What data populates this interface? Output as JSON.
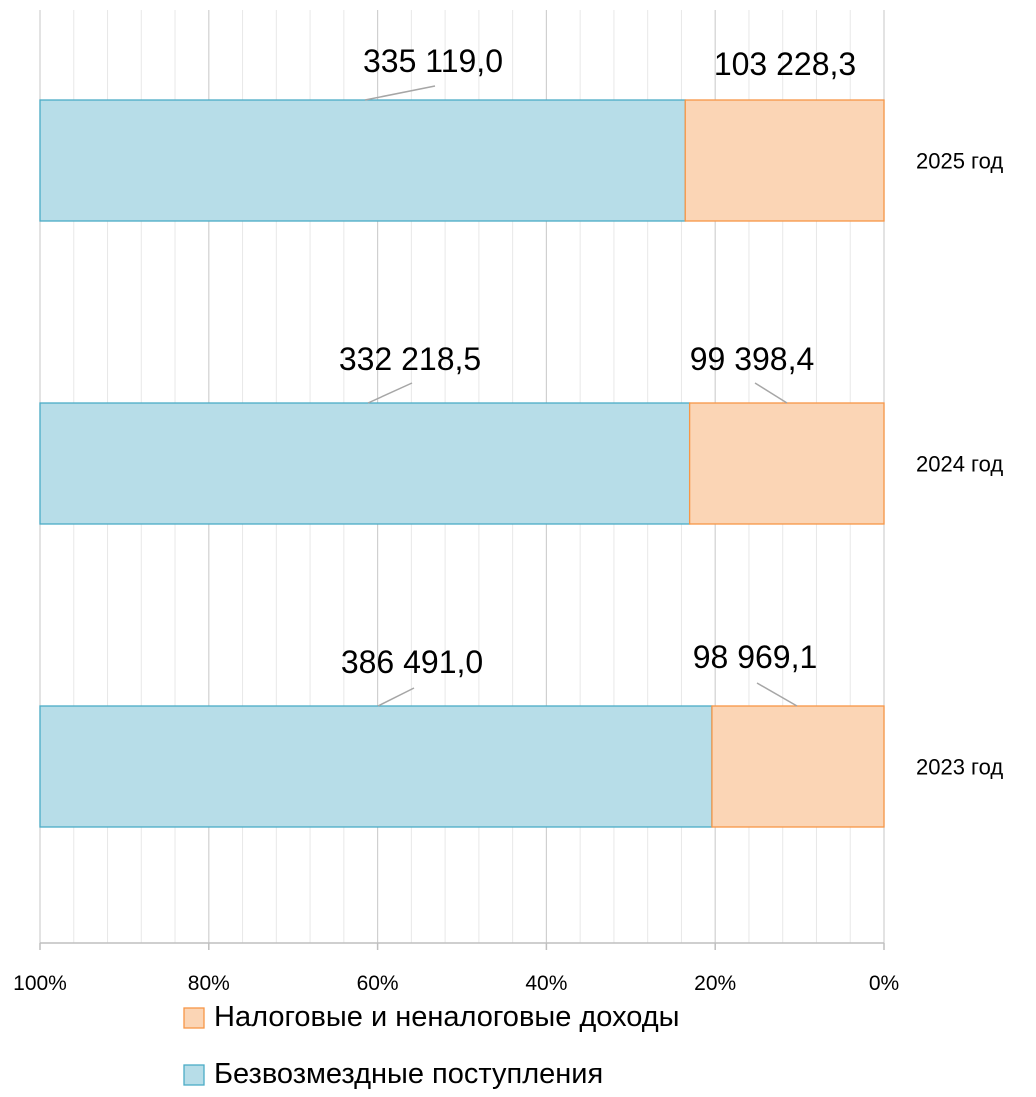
{
  "chart_data": {
    "type": "bar",
    "orientation": "horizontal",
    "stacked": "percent",
    "x_reversed": true,
    "categories": [
      "2025 год",
      "2024 год",
      "2023 год"
    ],
    "series": [
      {
        "name": "Безвозмездные поступления",
        "values": [
          335119.0,
          332218.5,
          386491.0
        ],
        "labels": [
          "335 119,0",
          "332 218,5",
          "386 491,0"
        ],
        "color": "#b7dde8",
        "stroke": "#4bacc6"
      },
      {
        "name": "Налоговые и неналоговые доходы",
        "values": [
          103228.3,
          99398.4,
          98969.1
        ],
        "labels": [
          "103 228,3",
          "99 398,4",
          "98 969,1"
        ],
        "color": "#fbd5b5",
        "stroke": "#f79646"
      }
    ],
    "x_ticks": [
      "100%",
      "80%",
      "60%",
      "40%",
      "20%",
      "0%"
    ],
    "xlim": [
      0,
      100
    ],
    "grid": true,
    "legend": {
      "position": "bottom",
      "order": [
        "Налоговые и неналоговые доходы",
        "Безвозмездные поступления"
      ]
    }
  }
}
